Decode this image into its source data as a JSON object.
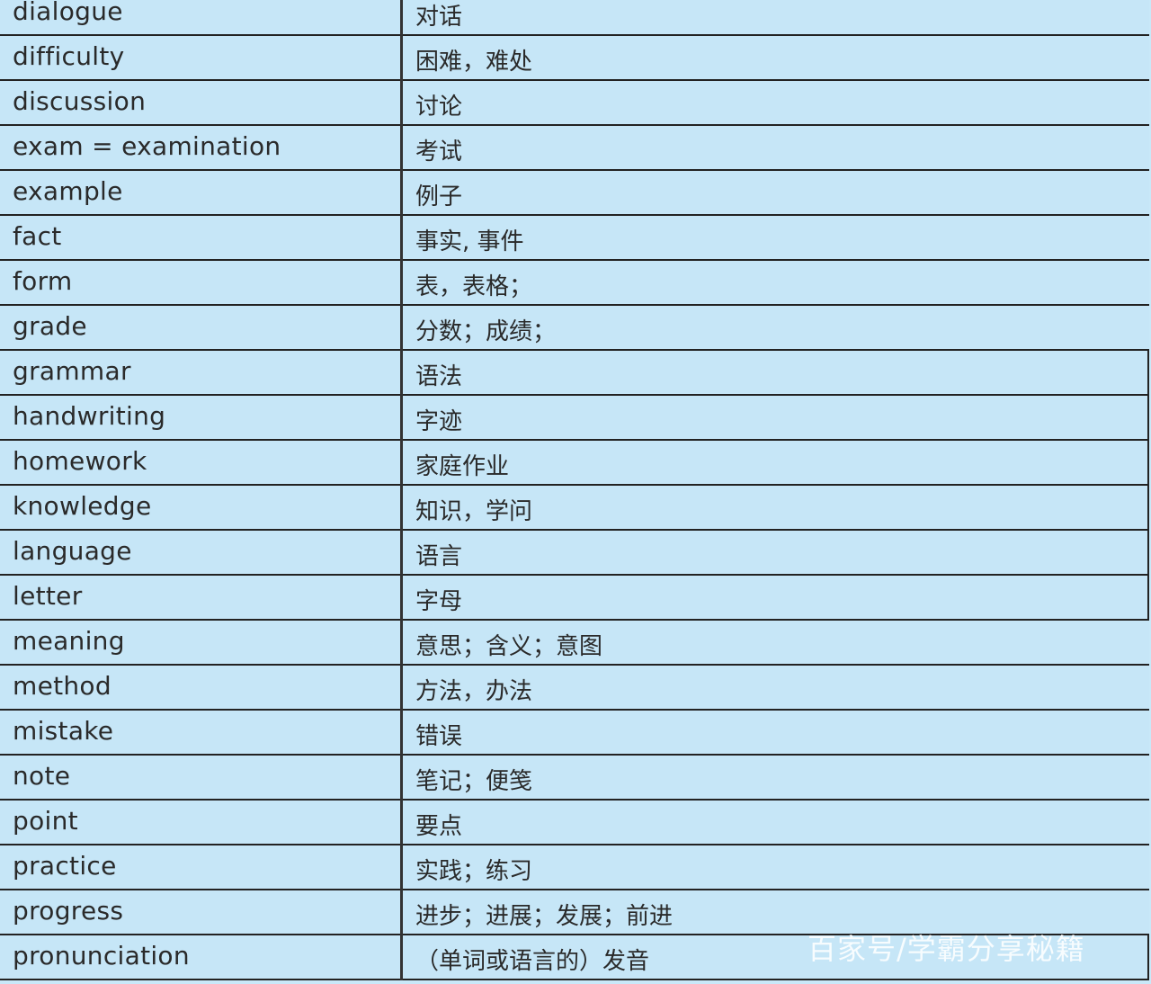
{
  "rows": [
    {
      "word": "dialogue",
      "meaning": "对话"
    },
    {
      "word": "difficulty",
      "meaning": "困难，难处"
    },
    {
      "word": "discussion",
      "meaning": "讨论"
    },
    {
      "word": "exam = examination",
      "meaning": "考试"
    },
    {
      "word": "example",
      "meaning": "例子"
    },
    {
      "word": "fact",
      "meaning": "事实, 事件"
    },
    {
      "word": "form",
      "meaning": "表，表格；"
    },
    {
      "word": "grade",
      "meaning": "分数；成绩；"
    },
    {
      "word": "grammar",
      "meaning": "语法"
    },
    {
      "word": "handwriting",
      "meaning": "字迹"
    },
    {
      "word": "homework",
      "meaning": "家庭作业"
    },
    {
      "word": "knowledge",
      "meaning": "知识，学问"
    },
    {
      "word": "language",
      "meaning": "语言"
    },
    {
      "word": "letter",
      "meaning": "字母"
    },
    {
      "word": "meaning",
      "meaning": "意思；含义；意图"
    },
    {
      "word": "method",
      "meaning": "方法，办法"
    },
    {
      "word": "mistake",
      "meaning": "错误"
    },
    {
      "word": "note",
      "meaning": "笔记；便笺"
    },
    {
      "word": "point",
      "meaning": "要点"
    },
    {
      "word": "practice",
      "meaning": "实践；练习"
    },
    {
      "word": "progress",
      "meaning": "进步；进展；发展；前进"
    },
    {
      "word": "pronunciation",
      "meaning": "（单词或语言的）发音"
    }
  ],
  "watermark": "百家号/学霸分享秘籍",
  "colors": {
    "background": "#c6e6f7",
    "border": "#222222",
    "text": "#2a2a2a"
  }
}
